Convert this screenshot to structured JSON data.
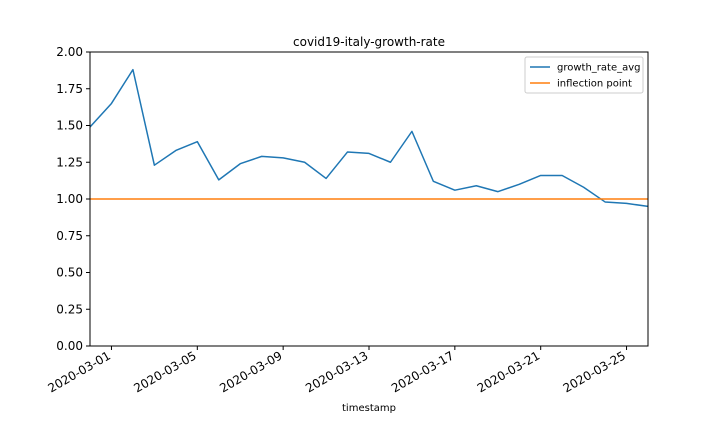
{
  "chart_data": {
    "type": "line",
    "title": "covid19-italy-growth-rate",
    "xlabel": "timestamp",
    "ylabel": "",
    "ylim": [
      0.0,
      2.0
    ],
    "yticks": [
      "0.00",
      "0.25",
      "0.50",
      "0.75",
      "1.00",
      "1.25",
      "1.50",
      "1.75",
      "2.00"
    ],
    "xlim": [
      "2020-02-29",
      "2020-03-26"
    ],
    "xticks": [
      "2020-03-01",
      "2020-03-05",
      "2020-03-09",
      "2020-03-13",
      "2020-03-17",
      "2020-03-21",
      "2020-03-25"
    ],
    "grid": false,
    "legend_position": "top-right",
    "series": [
      {
        "name": "growth_rate_avg",
        "color": "#1f77b4",
        "x": [
          "2020-02-29",
          "2020-03-01",
          "2020-03-02",
          "2020-03-03",
          "2020-03-04",
          "2020-03-05",
          "2020-03-06",
          "2020-03-07",
          "2020-03-08",
          "2020-03-09",
          "2020-03-10",
          "2020-03-11",
          "2020-03-12",
          "2020-03-13",
          "2020-03-14",
          "2020-03-15",
          "2020-03-16",
          "2020-03-17",
          "2020-03-18",
          "2020-03-19",
          "2020-03-20",
          "2020-03-21",
          "2020-03-22",
          "2020-03-23",
          "2020-03-24",
          "2020-03-25",
          "2020-03-26"
        ],
        "values": [
          1.49,
          1.65,
          1.88,
          1.23,
          1.33,
          1.39,
          1.13,
          1.24,
          1.29,
          1.28,
          1.25,
          1.14,
          1.32,
          1.31,
          1.25,
          1.46,
          1.12,
          1.06,
          1.09,
          1.05,
          1.1,
          1.16,
          1.16,
          1.08,
          0.98,
          0.97,
          0.95
        ]
      },
      {
        "name": "inflection point",
        "color": "#ff7f0e",
        "x": [
          "2020-02-29",
          "2020-03-26"
        ],
        "values": [
          1.0,
          1.0
        ]
      }
    ]
  }
}
